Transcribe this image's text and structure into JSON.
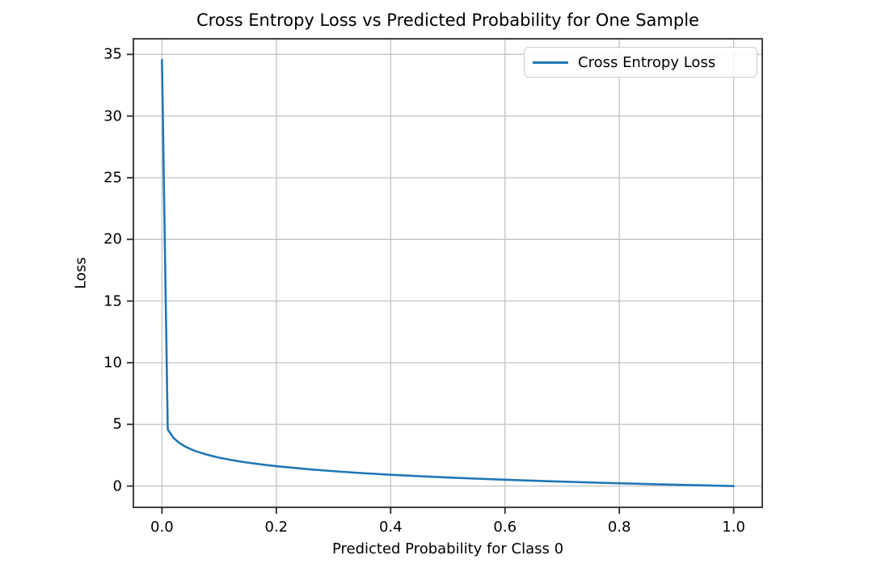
{
  "chart_data": {
    "type": "line",
    "title": "Cross Entropy Loss vs Predicted Probability for One Sample",
    "xlabel": "Predicted Probability for Class 0",
    "ylabel": "Loss",
    "xlim": [
      -0.05,
      1.05
    ],
    "ylim": [
      -1.727,
      36.266
    ],
    "grid": true,
    "x_tick_labels": [
      "0.0",
      "0.2",
      "0.4",
      "0.6",
      "0.8",
      "1.0"
    ],
    "x_tick_values": [
      0.0,
      0.2,
      0.4,
      0.6,
      0.8,
      1.0
    ],
    "y_tick_labels": [
      "0",
      "5",
      "10",
      "15",
      "20",
      "25",
      "30",
      "35"
    ],
    "y_tick_values": [
      0,
      5,
      10,
      15,
      20,
      25,
      30,
      35
    ],
    "legend": {
      "position": "upper right",
      "label": "Cross Entropy Loss"
    },
    "series": [
      {
        "name": "Cross Entropy Loss",
        "color": "#1f77b4",
        "x": [
          0,
          0.0101,
          0.02,
          0.03,
          0.04,
          0.05,
          0.06,
          0.08,
          0.1,
          0.12,
          0.14,
          0.16,
          0.18,
          0.2,
          0.25,
          0.3,
          0.35,
          0.4,
          0.45,
          0.5,
          0.55,
          0.6,
          0.65,
          0.7,
          0.75,
          0.8,
          0.85,
          0.9,
          0.95,
          1.0
        ],
        "y": [
          34.539,
          4.595,
          3.912,
          3.507,
          3.219,
          2.996,
          2.813,
          2.526,
          2.303,
          2.12,
          1.966,
          1.833,
          1.715,
          1.609,
          1.386,
          1.204,
          1.05,
          0.916,
          0.799,
          0.693,
          0.598,
          0.511,
          0.431,
          0.357,
          0.288,
          0.223,
          0.163,
          0.105,
          0.051,
          0.0
        ]
      }
    ],
    "style": {
      "grid_color": "#c3c3c3",
      "spine_color": "#2b2b2b",
      "background": "#ffffff"
    }
  }
}
